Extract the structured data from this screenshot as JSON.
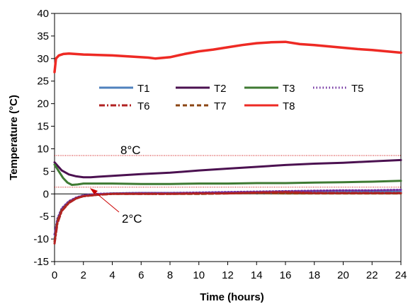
{
  "chart_data": {
    "type": "line",
    "title": "",
    "xlabel": "Time (hours)",
    "ylabel": "Temperature (°C)",
    "xlim": [
      0,
      24
    ],
    "ylim": [
      -15,
      40
    ],
    "x_ticks": [
      0,
      2,
      4,
      6,
      8,
      10,
      12,
      14,
      16,
      18,
      20,
      22,
      24
    ],
    "y_ticks": [
      -15,
      -10,
      -5,
      0,
      5,
      10,
      15,
      20,
      25,
      30,
      35,
      40
    ],
    "grid": false,
    "legend_position": "upper-middle",
    "series": [
      {
        "name": "T1",
        "color": "#4f81bd",
        "dash": "solid",
        "x": [
          0,
          0.2,
          0.5,
          1,
          1.5,
          2,
          3,
          4,
          6,
          8,
          10,
          12,
          14,
          16,
          18,
          20,
          22,
          24
        ],
        "y": [
          -10,
          -6,
          -3.5,
          -1.8,
          -0.9,
          -0.4,
          -0.1,
          0.1,
          0.2,
          0.2,
          0.2,
          0.3,
          0.3,
          0.4,
          0.4,
          0.4,
          0.5,
          0.5
        ]
      },
      {
        "name": "T2",
        "color": "#4b1150",
        "dash": "solid",
        "x": [
          0,
          0.5,
          1,
          1.5,
          2,
          2.5,
          3,
          4,
          6,
          8,
          10,
          12,
          14,
          16,
          18,
          20,
          22,
          24
        ],
        "y": [
          7,
          5.2,
          4.3,
          3.9,
          3.7,
          3.7,
          3.8,
          4.0,
          4.4,
          4.7,
          5.2,
          5.6,
          6.0,
          6.4,
          6.7,
          6.9,
          7.2,
          7.5
        ]
      },
      {
        "name": "T3",
        "color": "#3f7a33",
        "dash": "solid",
        "x": [
          0,
          0.3,
          0.6,
          0.9,
          1.2,
          1.6,
          2,
          3,
          4,
          6,
          8,
          10,
          12,
          14,
          16,
          18,
          20,
          22,
          24
        ],
        "y": [
          6.5,
          5,
          3.5,
          2.5,
          2.0,
          2.1,
          2.3,
          2.3,
          2.3,
          2.2,
          2.2,
          2.3,
          2.3,
          2.4,
          2.4,
          2.5,
          2.6,
          2.7,
          2.9
        ]
      },
      {
        "name": "T5",
        "color": "#7030a0",
        "dash": "dotted",
        "x": [
          0,
          0.2,
          0.5,
          1,
          1.5,
          2,
          3,
          4,
          6,
          8,
          10,
          12,
          14,
          16,
          18,
          20,
          22,
          24
        ],
        "y": [
          -9,
          -5.5,
          -3.2,
          -1.6,
          -0.8,
          -0.3,
          0,
          0.1,
          0.2,
          0.2,
          0.3,
          0.4,
          0.5,
          0.6,
          0.7,
          0.8,
          0.8,
          0.9
        ]
      },
      {
        "name": "T6",
        "color": "#b22222",
        "dash": "dashdot",
        "x": [
          0,
          0.2,
          0.5,
          1,
          1.5,
          2,
          3,
          4,
          6,
          8,
          10,
          12,
          14,
          16,
          18,
          20,
          22,
          24
        ],
        "y": [
          -11,
          -6.5,
          -3.8,
          -2.0,
          -1.0,
          -0.5,
          -0.2,
          0,
          0,
          0,
          0.1,
          0.1,
          0.3,
          0.4,
          0.2,
          0.2,
          0.2,
          0.2
        ]
      },
      {
        "name": "T7",
        "color": "#8b4513",
        "dash": "dashed",
        "x": [
          0,
          0.2,
          0.5,
          1,
          1.5,
          2,
          3,
          4,
          6,
          8,
          10,
          12,
          14,
          16,
          18,
          20,
          22,
          24
        ],
        "y": [
          -10.5,
          -6,
          -3.6,
          -1.9,
          -1.0,
          -0.5,
          -0.2,
          0,
          0,
          0,
          0,
          0.1,
          0.2,
          0.1,
          0.1,
          0.1,
          0.1,
          0.1
        ]
      },
      {
        "name": "T8",
        "color": "#ee2a24",
        "dash": "solid",
        "x": [
          0,
          0.1,
          0.3,
          0.6,
          1,
          2,
          3,
          4,
          5,
          6,
          6.5,
          7,
          8,
          9,
          10,
          11,
          12,
          13,
          14,
          15,
          16,
          17,
          18,
          19,
          20,
          21,
          22,
          23,
          24
        ],
        "y": [
          27,
          30,
          30.7,
          31,
          31.1,
          30.9,
          30.8,
          30.7,
          30.5,
          30.3,
          30.2,
          30.0,
          30.3,
          31.0,
          31.6,
          32.0,
          32.5,
          33.0,
          33.4,
          33.6,
          33.7,
          33.2,
          33.0,
          32.7,
          32.4,
          32.1,
          31.9,
          31.6,
          31.3
        ]
      }
    ],
    "reference_lines": [
      {
        "y": 8.5,
        "color": "#cc0000"
      },
      {
        "y": 1.5,
        "color": "#cc0000"
      }
    ],
    "annotations": [
      {
        "text": "8°C"
      },
      {
        "text": "2°C"
      }
    ]
  }
}
